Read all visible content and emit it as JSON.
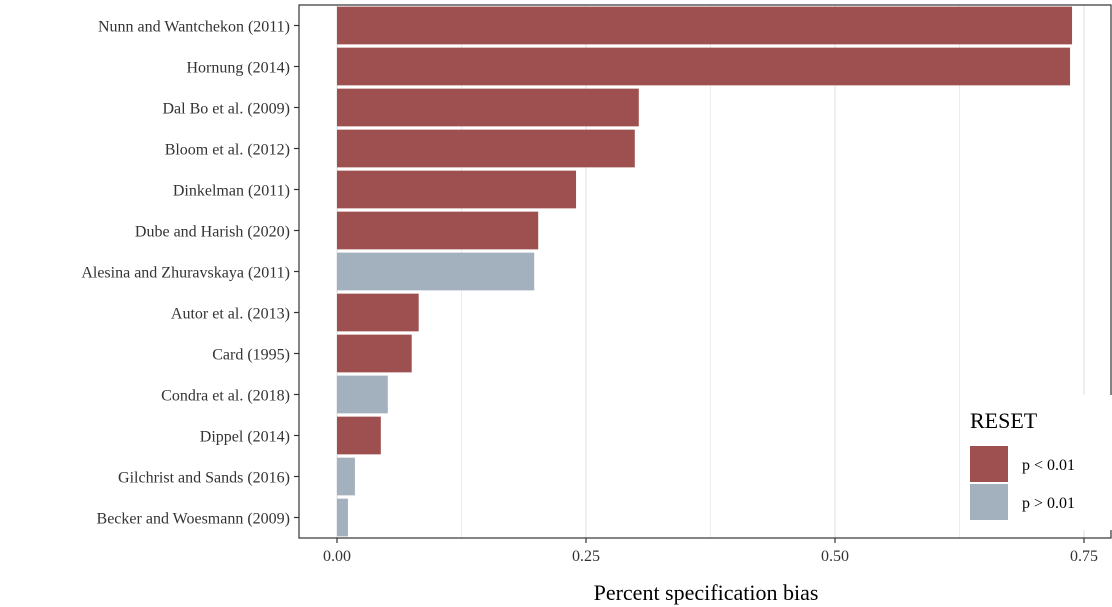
{
  "chart_data": {
    "type": "bar",
    "orientation": "horizontal",
    "title": "",
    "xlabel": "Percent specification bias",
    "ylabel": "",
    "xlim": [
      -0.075,
      0.76
    ],
    "xticks": [
      0.0,
      0.25,
      0.5,
      0.75
    ],
    "xtick_labels": [
      "0.00",
      "0.25",
      "0.50",
      "0.75"
    ],
    "grid": true,
    "legend": {
      "title": "RESET",
      "placement": "bottom-right",
      "entries": [
        {
          "key": "sig",
          "label": "p < 0.01",
          "color": "#9e4f4f"
        },
        {
          "key": "nonsig",
          "label": "p > 0.01",
          "color": "#a3b0bd"
        }
      ]
    },
    "categories": [
      "Nunn and Wantchekon (2011)",
      "Hornung (2014)",
      "Dal Bo et al. (2009)",
      "Bloom et al. (2012)",
      "Dinkelman (2011)",
      "Dube and Harish (2020)",
      "Alesina and Zhuravskaya (2011)",
      "Autor et al. (2013)",
      "Card (1995)",
      "Condra et al. (2018)",
      "Dippel (2014)",
      "Gilchrist and Sands (2016)",
      "Becker and Woesmann (2009)"
    ],
    "values": [
      0.738,
      0.736,
      0.303,
      0.299,
      0.24,
      0.202,
      0.198,
      0.082,
      0.075,
      0.051,
      0.044,
      0.018,
      0.011
    ],
    "groups": [
      "sig",
      "sig",
      "sig",
      "sig",
      "sig",
      "sig",
      "nonsig",
      "sig",
      "sig",
      "nonsig",
      "sig",
      "nonsig",
      "nonsig"
    ]
  }
}
